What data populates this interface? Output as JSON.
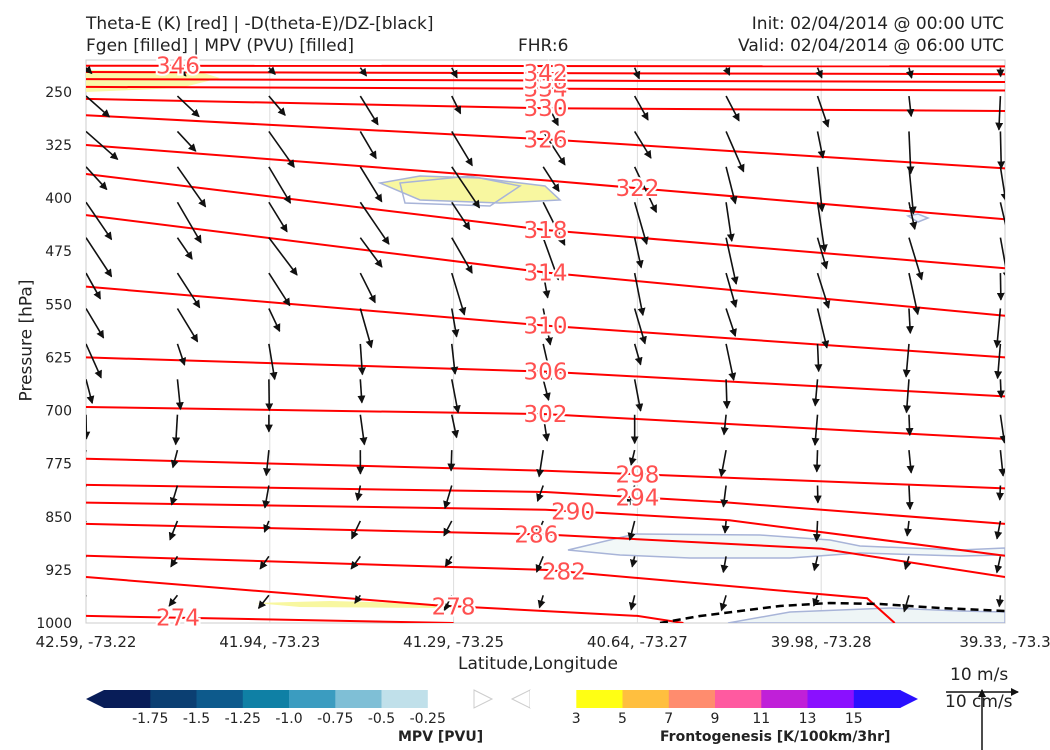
{
  "header": {
    "title_left_1": "Theta-E (K) [red] | -D(theta-E)/DZ-[black]",
    "title_left_2": "Fgen [filled] | MPV (PVU) [filled]",
    "fhr": "FHR:6",
    "init": "Init: 02/04/2014 @ 00:00 UTC",
    "valid": "Valid: 02/04/2014 @ 06:00 UTC"
  },
  "chart_data": {
    "type": "cross-section",
    "xlabel": "Latitude,Longitude",
    "ylabel": "Pressure [hPa]",
    "x_ticks": [
      "42.59, -73.22",
      "41.94, -73.23",
      "41.29, -73.25",
      "40.64, -73.27",
      "39.98, -73.28",
      "39.33, -73.3"
    ],
    "y_ticks": [
      250,
      325,
      400,
      475,
      550,
      625,
      700,
      775,
      850,
      925,
      1000
    ],
    "ylim": [
      1000,
      205
    ],
    "theta_e_contours": [
      {
        "value": 274,
        "label": "274",
        "points": [
          [
            0,
            990
          ],
          [
            0.4,
            1000
          ]
        ]
      },
      {
        "value": 278,
        "label": "278",
        "points": [
          [
            0,
            935
          ],
          [
            0.38,
            975
          ],
          [
            0.6,
            990
          ],
          [
            0.65,
            1000
          ]
        ]
      },
      {
        "value": 282,
        "label": "282",
        "points": [
          [
            0,
            905
          ],
          [
            0.5,
            925
          ],
          [
            0.85,
            965
          ],
          [
            0.88,
            1000
          ]
        ]
      },
      {
        "value": 286,
        "label": "286",
        "points": [
          [
            0,
            860
          ],
          [
            0.5,
            875
          ],
          [
            0.8,
            895
          ],
          [
            1,
            935
          ]
        ]
      },
      {
        "value": 290,
        "label": "290",
        "points": [
          [
            0,
            830
          ],
          [
            0.5,
            840
          ],
          [
            0.7,
            855
          ],
          [
            1,
            905
          ]
        ]
      },
      {
        "value": 294,
        "label": "294",
        "points": [
          [
            0,
            805
          ],
          [
            0.5,
            815
          ],
          [
            0.7,
            830
          ],
          [
            1,
            860
          ]
        ]
      },
      {
        "value": 298,
        "label": "298",
        "points": [
          [
            0,
            768
          ],
          [
            0.5,
            785
          ],
          [
            1,
            810
          ]
        ]
      },
      {
        "value": 302,
        "label": "302",
        "points": [
          [
            0,
            695
          ],
          [
            0.5,
            705
          ],
          [
            1,
            740
          ]
        ]
      },
      {
        "value": 306,
        "label": "306",
        "points": [
          [
            0,
            625
          ],
          [
            0.5,
            645
          ],
          [
            1,
            680
          ]
        ]
      },
      {
        "value": 310,
        "label": "310",
        "points": [
          [
            0,
            525
          ],
          [
            0.5,
            580
          ],
          [
            1,
            625
          ]
        ]
      },
      {
        "value": 314,
        "label": "314",
        "points": [
          [
            0,
            424
          ],
          [
            0.5,
            505
          ],
          [
            1,
            566
          ]
        ]
      },
      {
        "value": 318,
        "label": "318",
        "points": [
          [
            0,
            366
          ],
          [
            0.5,
            445
          ],
          [
            1,
            499
          ]
        ]
      },
      {
        "value": 322,
        "label": "322",
        "points": [
          [
            0,
            325
          ],
          [
            0.5,
            375
          ],
          [
            1,
            430
          ]
        ]
      },
      {
        "value": 326,
        "label": "326",
        "points": [
          [
            0,
            283
          ],
          [
            0.5,
            317
          ],
          [
            1,
            358
          ]
        ]
      },
      {
        "value": 330,
        "label": "330",
        "points": [
          [
            0,
            260
          ],
          [
            0.5,
            273
          ],
          [
            1,
            277
          ]
        ]
      },
      {
        "value": 334,
        "label": "334",
        "points": [
          [
            0,
            243
          ],
          [
            1,
            248
          ]
        ]
      },
      {
        "value": 338,
        "label": "338",
        "points": [
          [
            0,
            232
          ],
          [
            1,
            236
          ]
        ]
      },
      {
        "value": 342,
        "label": "342",
        "points": [
          [
            0,
            222
          ],
          [
            1,
            225
          ]
        ]
      },
      {
        "value": 346,
        "label": "346",
        "points": [
          [
            0,
            213
          ],
          [
            1,
            214
          ]
        ]
      }
    ],
    "mpv_colorbar": {
      "label": "MPV [PVU]",
      "ticks": [
        "-1.75",
        "-1.5",
        "-1.25",
        "-1.0",
        "-0.75",
        "-0.5",
        "-0.25"
      ],
      "colors": [
        "#081d58",
        "#0b3f72",
        "#0d5a8c",
        "#0f80a5",
        "#3b9cc0",
        "#7fbfd6",
        "#c0e0ea",
        "#ffffff"
      ]
    },
    "fgen_colorbar": {
      "label": "Frontogenesis [K/100km/3hr]",
      "ticks": [
        "3",
        "5",
        "7",
        "9",
        "11",
        "13",
        "15"
      ],
      "colors": [
        "#ffffff",
        "#ffff14",
        "#ffbf3f",
        "#ff8c6e",
        "#ff5aa0",
        "#c020d8",
        "#8a10ff",
        "#2a10ff"
      ]
    },
    "barb_reference": {
      "top": "10 m/s",
      "bottom": "10 cm/s"
    }
  }
}
